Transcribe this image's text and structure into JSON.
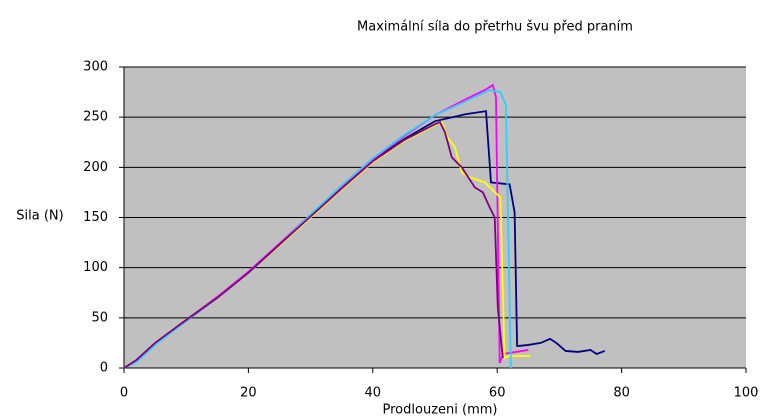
{
  "chart_data": {
    "type": "line",
    "title": "Maximální síla do přetrhu švu před praním",
    "xlabel": "Prodlouzeni (mm)",
    "ylabel": "Sila (N)",
    "xlim": [
      0,
      100
    ],
    "xticks": [
      0,
      20,
      40,
      60,
      80,
      100
    ],
    "ylim": [
      0,
      300
    ],
    "yticks": [
      0,
      50,
      100,
      150,
      200,
      250,
      300
    ],
    "grid": true,
    "background": "#c0c0c0",
    "series": [
      {
        "color": "#000080",
        "x": [
          0,
          2,
          5,
          10,
          15,
          20,
          25,
          30,
          35,
          40,
          45,
          50,
          55,
          58.2,
          59,
          62,
          62.8,
          63.2,
          63.5,
          65,
          67,
          68.5,
          69.5,
          71,
          73,
          75,
          76,
          77.3
        ],
        "values": [
          0,
          7,
          24,
          47,
          70,
          95,
          123,
          152,
          180,
          207,
          228,
          246,
          253,
          256,
          185,
          183,
          155,
          22,
          22,
          23,
          25,
          29,
          25,
          17,
          16,
          18,
          14,
          17
        ]
      },
      {
        "color": "#ff00ff",
        "x": [
          0,
          2,
          5,
          10,
          15,
          20,
          25,
          30,
          35,
          40,
          45,
          50,
          55,
          58,
          59.3,
          59.8,
          60.4,
          61,
          63,
          65
        ],
        "values": [
          0,
          8,
          25,
          48,
          71,
          96,
          124,
          153,
          181,
          208,
          231,
          252,
          268,
          277,
          282,
          270,
          5,
          14,
          16,
          18
        ]
      },
      {
        "color": "#ffff00",
        "x": [
          0,
          2,
          5,
          10,
          15,
          20,
          25,
          30,
          35,
          40,
          45,
          50,
          51.1,
          52,
          53.2,
          54.3,
          55.6,
          58,
          60.5,
          61.2,
          62,
          65.3
        ],
        "values": [
          0,
          8,
          25,
          48,
          70,
          95,
          122,
          150,
          178,
          205,
          226,
          242,
          245,
          230,
          220,
          195,
          190,
          185,
          170,
          10,
          12,
          12
        ]
      },
      {
        "color": "#33ccff",
        "x": [
          0,
          2,
          5,
          10,
          15,
          20,
          25,
          30,
          35,
          40,
          45,
          50,
          55,
          57,
          58.8,
          60.5,
          61.4,
          62.2
        ],
        "values": [
          0,
          6,
          23,
          47,
          70,
          95,
          123,
          153,
          182,
          209,
          232,
          252,
          266,
          272,
          277,
          275,
          262,
          0
        ]
      },
      {
        "color": "#800080",
        "x": [
          0,
          2,
          5,
          10,
          15,
          20,
          25,
          30,
          35,
          40,
          45,
          50,
          50.8,
          51.6,
          52.7,
          54.3,
          56.4,
          57.7,
          58.8,
          59.6,
          60.1,
          60.9
        ],
        "values": [
          0,
          8,
          25,
          48,
          70,
          95,
          123,
          151,
          179,
          206,
          227,
          243,
          245,
          235,
          210,
          200,
          180,
          175,
          160,
          150,
          60,
          10
        ]
      }
    ]
  }
}
